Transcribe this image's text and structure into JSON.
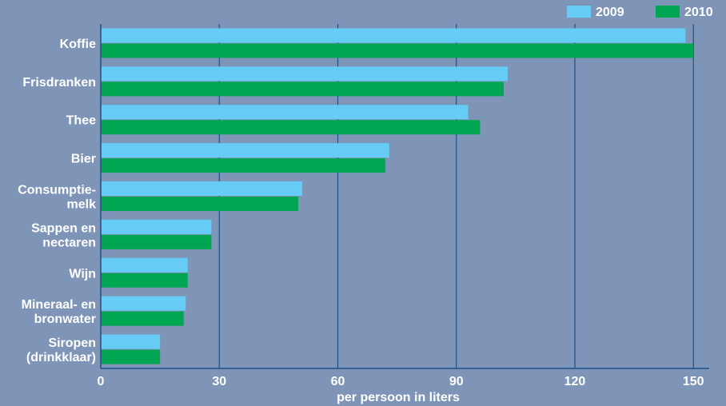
{
  "chart_data": {
    "type": "bar",
    "orientation": "horizontal",
    "categories": [
      [
        "Koffie"
      ],
      [
        "Frisdranken"
      ],
      [
        "Thee"
      ],
      [
        "Bier"
      ],
      [
        "Consumptie-",
        "melk"
      ],
      [
        "Sappen en",
        "nectaren"
      ],
      [
        "Wijn"
      ],
      [
        "Mineraal- en",
        "bronwater"
      ],
      [
        "Siropen",
        "(drinkklaar)"
      ]
    ],
    "series": [
      {
        "name": "2009",
        "color": "#66ccf5",
        "values": [
          148,
          103,
          93,
          73,
          51,
          28,
          22,
          21.5,
          15
        ]
      },
      {
        "name": "2010",
        "color": "#00a651",
        "values": [
          150,
          102,
          96,
          72,
          50,
          28,
          22,
          21,
          15
        ]
      }
    ],
    "xticks": [
      0,
      30,
      60,
      90,
      120,
      150
    ],
    "xlim": [
      0,
      154
    ],
    "xlabel": "per persoon in liters",
    "title": "",
    "grid": true,
    "legend_position": "top-right",
    "colors": {
      "background": "#7f95b8",
      "plot_background": "#7f95b8",
      "grid": "#1f4e86",
      "text": "#ffffff"
    }
  }
}
